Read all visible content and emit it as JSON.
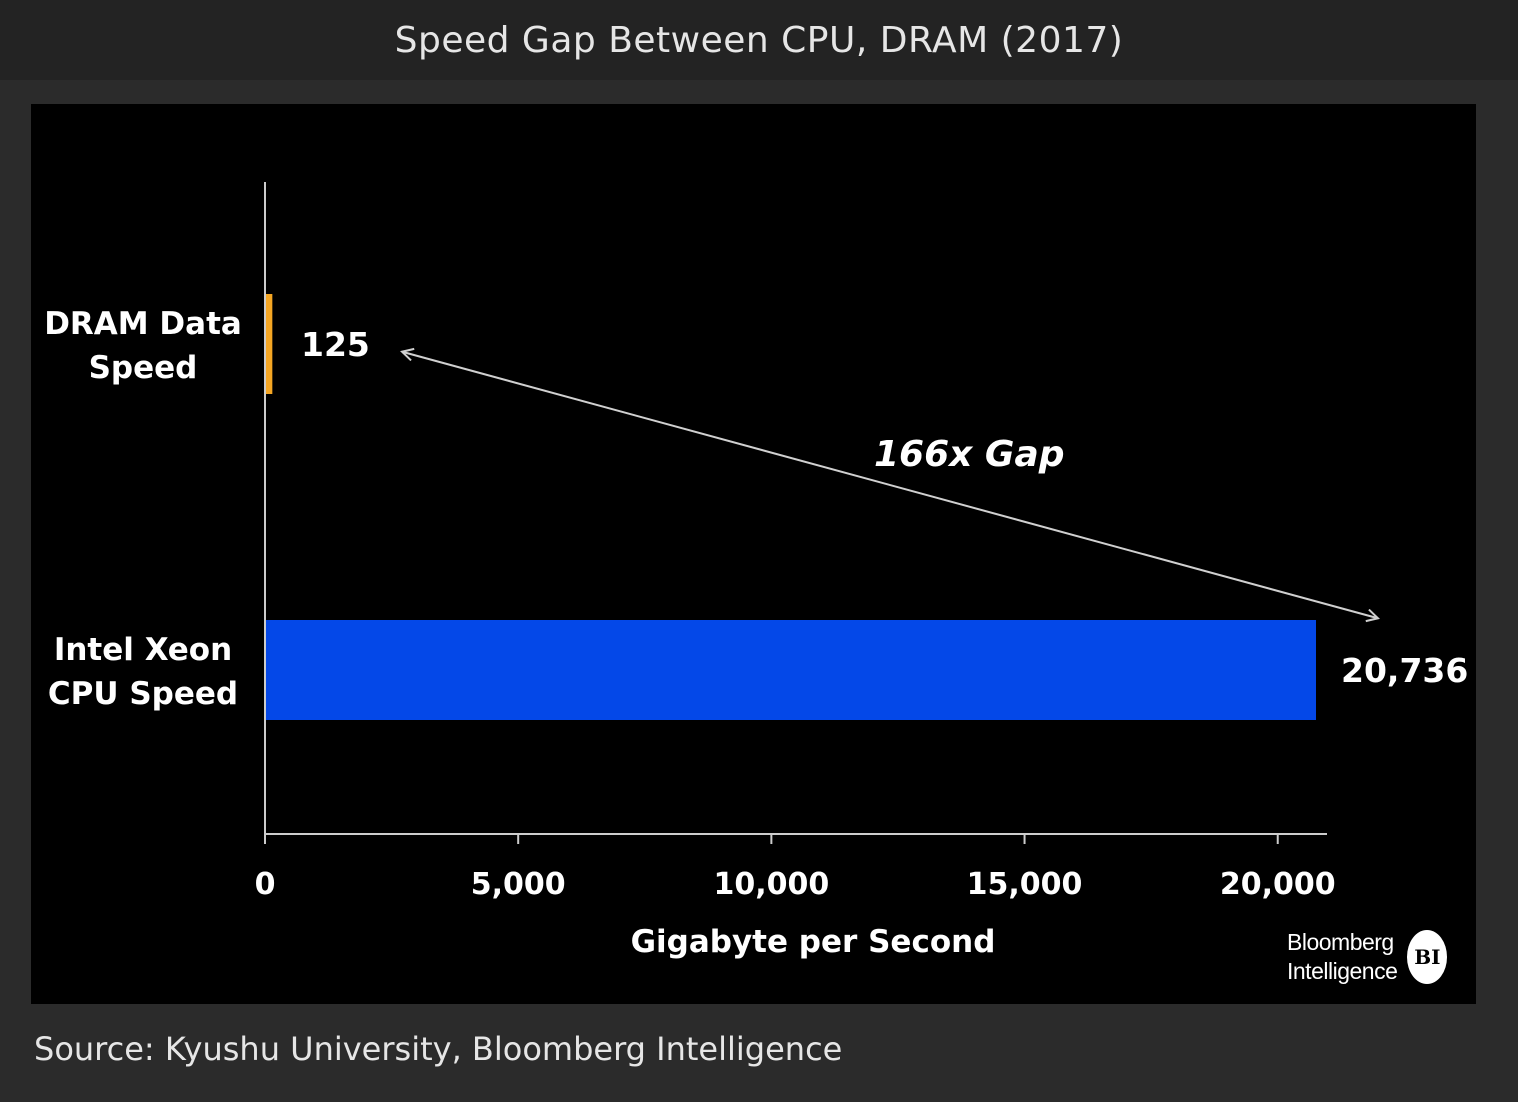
{
  "page": {
    "title": "Speed Gap Between CPU, DRAM (2017)",
    "source": "Source: Kyushu University, Bloomberg Intelligence",
    "logo": {
      "line1": "Bloomberg",
      "line2": "Intelligence",
      "badge": "BI"
    }
  },
  "chart_data": {
    "type": "bar",
    "orientation": "horizontal",
    "title": "Speed Gap Between CPU, DRAM (2017)",
    "xlabel": "Gigabyte per Second",
    "ylabel": "",
    "xlim": [
      0,
      21000
    ],
    "xticks": [
      0,
      5000,
      10000,
      15000,
      20000
    ],
    "xtick_labels": [
      "0",
      "5,000",
      "10,000",
      "15,000",
      "20,000"
    ],
    "grid": false,
    "categories": [
      {
        "label_lines": [
          "DRAM Data",
          "Speed"
        ],
        "value": 125,
        "value_label": "125",
        "color": "#f5a623"
      },
      {
        "label_lines": [
          "Intel Xeon",
          "CPU Speed"
        ],
        "value": 20736,
        "value_label": "20,736",
        "color": "#0448e8"
      }
    ],
    "annotation": {
      "text": "166x Gap",
      "type": "double-arrow"
    }
  },
  "colors": {
    "background": "#2b2b2b",
    "panel": "#000000",
    "axis": "#cccccc",
    "arrow": "#d0d0d0"
  }
}
